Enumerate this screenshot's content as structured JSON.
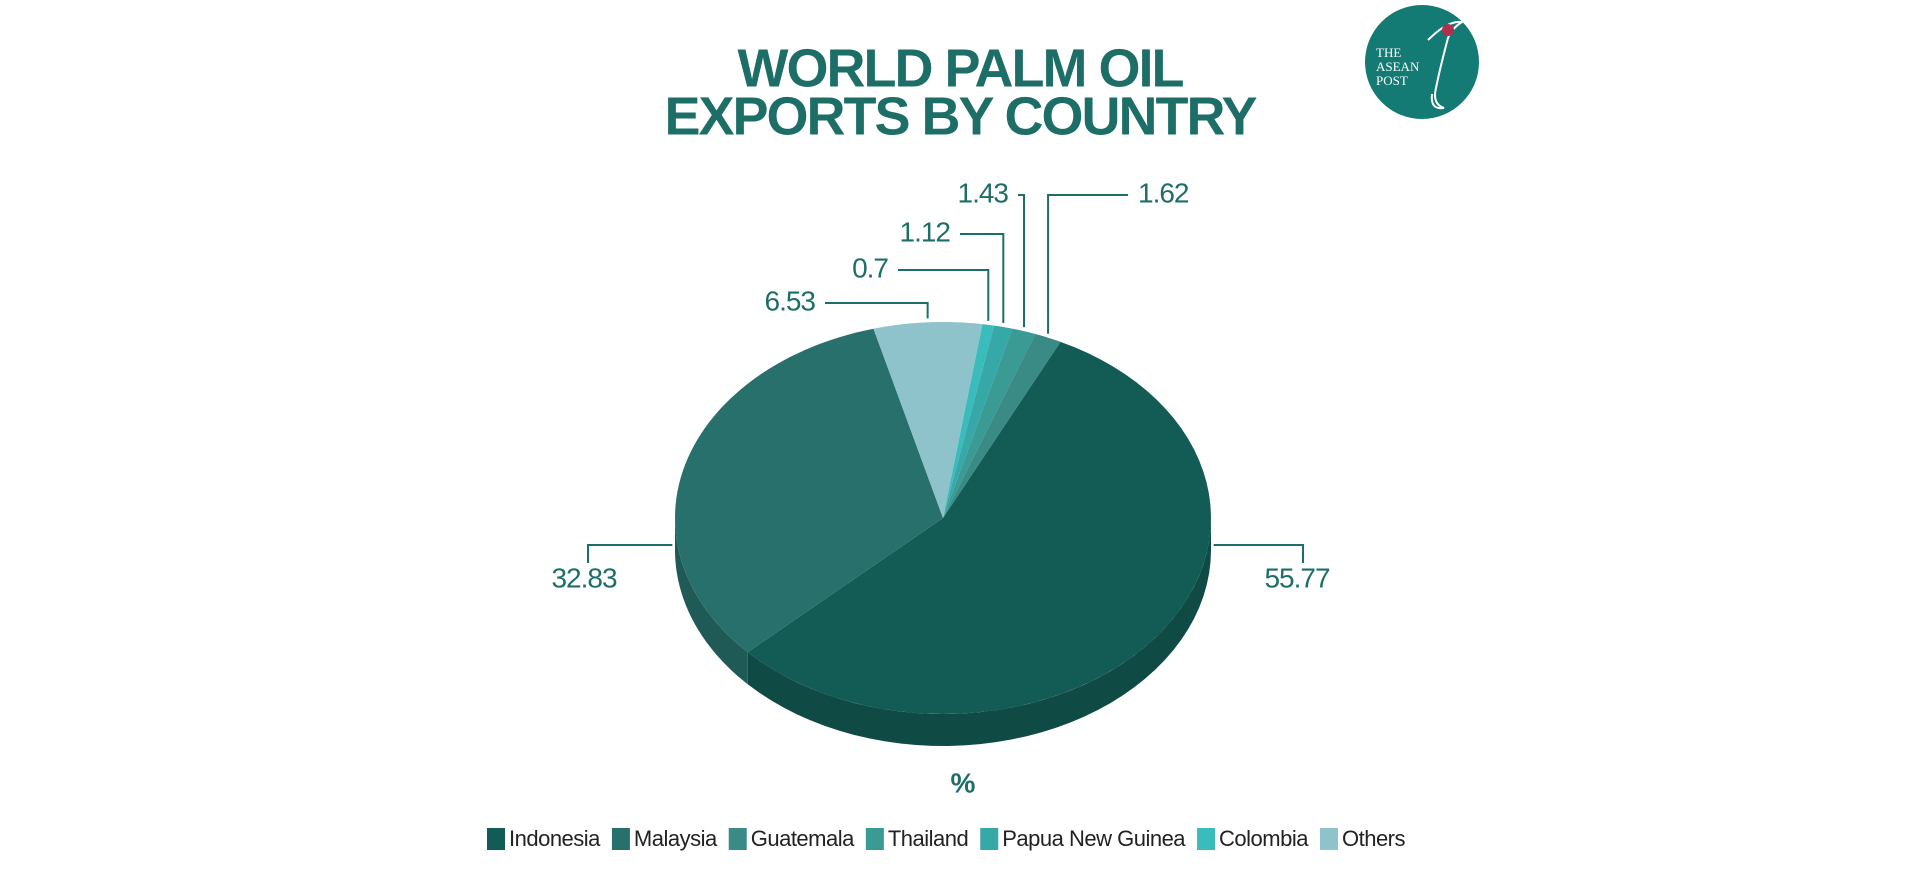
{
  "logo": [
    "THE",
    "ASEAN",
    "POST"
  ],
  "chart_data": {
    "type": "pie",
    "title": [
      "WORLD PALM OIL",
      "EXPORTS BY COUNTRY"
    ],
    "unit": "%",
    "categories": [
      "Indonesia",
      "Malaysia",
      "Guatemala",
      "Thailand",
      "Papua New Guinea",
      "Colombia",
      "Others"
    ],
    "values": [
      55.77,
      32.83,
      1.62,
      1.43,
      1.12,
      0.7,
      6.53
    ],
    "colors": [
      "#135c56",
      "#27706b",
      "#3a8a85",
      "#3a9a94",
      "#37a8a8",
      "#3bbcbc",
      "#8fc3cc"
    ]
  }
}
